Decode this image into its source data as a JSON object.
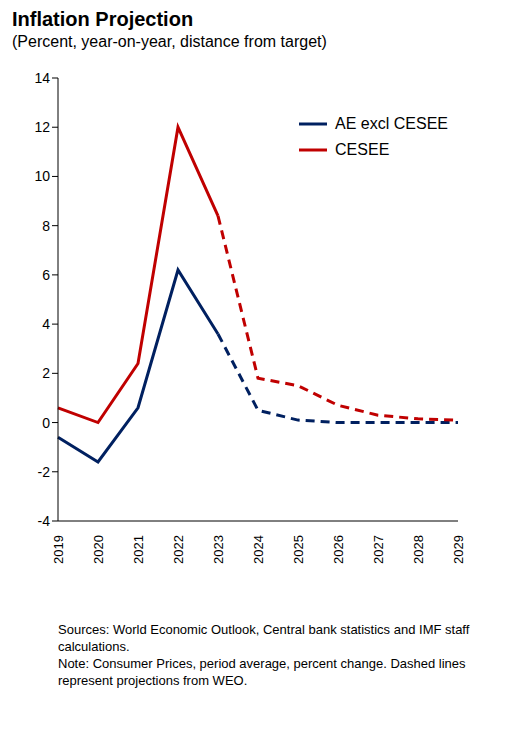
{
  "chart_data": {
    "type": "line",
    "title": "Inflation Projection",
    "subtitle": "(Percent, year-on-year, distance from target)",
    "x": [
      "2019",
      "2020",
      "2021",
      "2022",
      "2023",
      "2024",
      "2025",
      "2026",
      "2027",
      "2028",
      "2029"
    ],
    "series": [
      {
        "name": "AE excl CESEE",
        "color": "#002060",
        "line_style": "solid",
        "values": [
          -0.6,
          -1.6,
          0.6,
          6.2,
          3.6,
          null,
          null,
          null,
          null,
          null,
          null
        ]
      },
      {
        "name": "AE excl CESEE",
        "color": "#002060",
        "line_style": "dashed",
        "values": [
          null,
          null,
          null,
          null,
          3.6,
          0.5,
          0.1,
          0.0,
          0.0,
          0.0,
          0.0
        ]
      },
      {
        "name": "CESEE",
        "color": "#c00000",
        "line_style": "solid",
        "values": [
          0.6,
          0.0,
          2.4,
          12.0,
          8.4,
          null,
          null,
          null,
          null,
          null,
          null
        ]
      },
      {
        "name": "CESEE",
        "color": "#c00000",
        "line_style": "dashed",
        "values": [
          null,
          null,
          null,
          null,
          8.4,
          1.8,
          1.5,
          0.7,
          0.3,
          0.15,
          0.1
        ]
      }
    ],
    "ylim": [
      -4,
      14
    ],
    "yticks": [
      -4,
      -2,
      0,
      2,
      4,
      6,
      8,
      10,
      12,
      14
    ],
    "grid": false,
    "legend": "top-right",
    "sources": "Sources: World Economic Outlook, Central bank statistics and IMF staff calculations.",
    "note": "Note: Consumer Prices, period average, percent change. Dashed lines represent projections from WEO."
  }
}
